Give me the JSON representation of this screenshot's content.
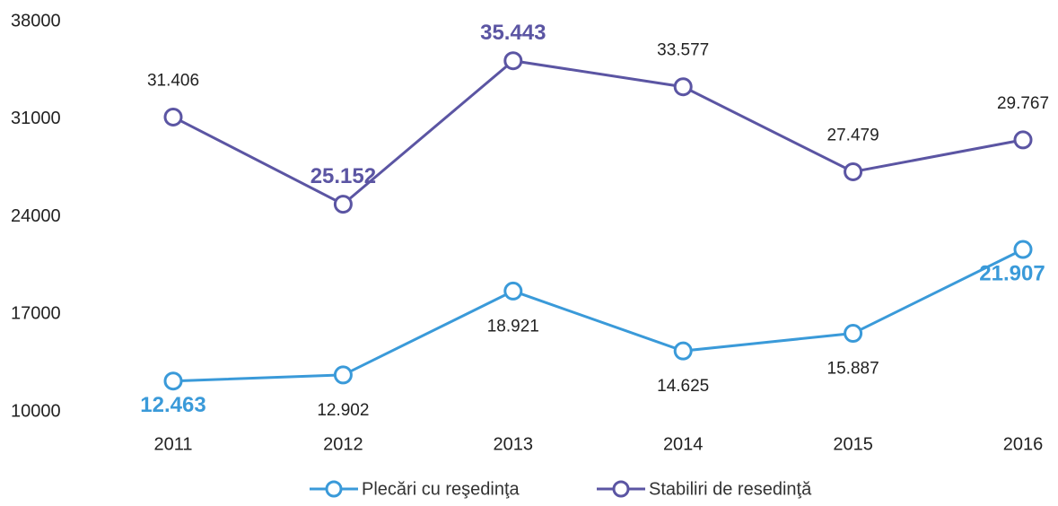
{
  "chart_data": {
    "type": "line",
    "categories": [
      "2011",
      "2012",
      "2013",
      "2014",
      "2015",
      "2016"
    ],
    "series": [
      {
        "name": "Plecări cu reşedinţa",
        "color": "#3a9ad9",
        "values": [
          12463,
          12902,
          18921,
          14625,
          15887,
          21907
        ],
        "value_labels": [
          "12.463",
          "12.902",
          "18.921",
          "14.625",
          "15.887",
          "21.907"
        ]
      },
      {
        "name": "Stabiliri de resedinţă",
        "color": "#5b55a3",
        "values": [
          31406,
          25152,
          35443,
          33577,
          27479,
          29767
        ],
        "value_labels": [
          "31.406",
          "25.152",
          "35.443",
          "33.577",
          "27.479",
          "29.767"
        ]
      }
    ],
    "ylim": [
      10000,
      38000
    ],
    "yticks": [
      10000,
      17000,
      24000,
      31000,
      38000
    ],
    "grid": false,
    "legend": "bottom"
  }
}
